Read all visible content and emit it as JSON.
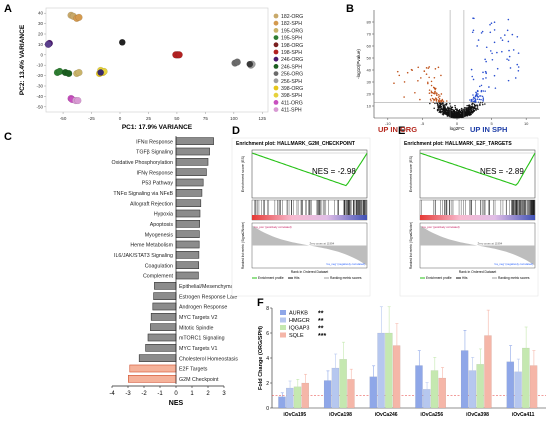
{
  "panels": {
    "a": {
      "label": "A"
    },
    "b": {
      "label": "B"
    },
    "c": {
      "label": "C"
    },
    "d": {
      "label": "D"
    },
    "e": {
      "label": "E"
    },
    "f": {
      "label": "F"
    }
  },
  "chart_data": [
    {
      "id": "A",
      "type": "scatter",
      "xlabel": "PC1: 17.9% VARIANCE",
      "ylabel": "PC2: 13.4% VARIANCE",
      "xticks": [
        -50,
        -25,
        0,
        25,
        50,
        75,
        100,
        125
      ],
      "yticks": [
        -50,
        -40,
        -30,
        -20,
        -10,
        0,
        10,
        20,
        30,
        40
      ],
      "xlim": [
        -65,
        130
      ],
      "ylim": [
        -55,
        45
      ],
      "legend_position": "right",
      "series": [
        {
          "name": "182-ORG",
          "color": "#c8a96a",
          "points": [
            [
              -43,
              38
            ],
            [
              -41,
              37
            ]
          ]
        },
        {
          "name": "182-SPH",
          "color": "#d49a4e",
          "points": [
            [
              -38,
              35
            ],
            [
              -36,
              36
            ]
          ]
        },
        {
          "name": "195-ORG",
          "color": "#c9b36a",
          "points": [
            [
              -38,
              -18
            ],
            [
              -36,
              -17
            ]
          ]
        },
        {
          "name": "195-SPH",
          "color": "#2e7d32",
          "points": [
            [
              -55,
              -17
            ],
            [
              -53,
              -16
            ]
          ]
        },
        {
          "name": "198-ORG",
          "color": "#7a1f1f",
          "points": [
            [
              50,
              0
            ],
            [
              51,
              0
            ]
          ]
        },
        {
          "name": "198-SPH",
          "color": "#b22222",
          "points": [
            [
              49,
              0
            ],
            [
              52,
              0
            ]
          ]
        },
        {
          "name": "246-ORG",
          "color": "#4a1a6e",
          "points": [
            [
              -63,
              10
            ],
            [
              -62,
              11
            ]
          ]
        },
        {
          "name": "246-SPH",
          "color": "#1b5e20",
          "points": [
            [
              -48,
              -17
            ],
            [
              -45,
              -18
            ]
          ]
        },
        {
          "name": "256-ORG",
          "color": "#6b6b6b",
          "points": [
            [
              101,
              -8
            ],
            [
              103,
              -7
            ]
          ]
        },
        {
          "name": "256-SPH",
          "color": "#9e9e9e",
          "points": [
            [
              115,
              -10
            ],
            [
              116,
              -9
            ]
          ]
        },
        {
          "name": "398-ORG",
          "color": "#e6c619",
          "points": [
            [
              -18,
              -18
            ],
            [
              -15,
              -17
            ]
          ]
        },
        {
          "name": "398-SPH",
          "color": "#e6d23c",
          "points": [
            [
              -17,
              -15
            ],
            [
              -14,
              -16
            ]
          ]
        },
        {
          "name": "411-ORG",
          "color": "#c84fbf",
          "points": [
            [
              -43,
              -42
            ],
            [
              -42,
              -43
            ]
          ]
        },
        {
          "name": "411-SPH",
          "color": "#d89ad3",
          "points": [
            [
              -39,
              -44
            ],
            [
              -37,
              -44
            ]
          ]
        }
      ],
      "extra_points": [
        {
          "color": "#222222",
          "x": 2,
          "y": 12
        },
        {
          "color": "#5a3f8c",
          "x": -63,
          "y": 10
        },
        {
          "color": "#3a2a6a",
          "x": -17,
          "y": -17
        },
        {
          "color": "#3a3a3a",
          "x": 114,
          "y": -9
        }
      ]
    },
    {
      "id": "B",
      "type": "scatter",
      "title": "",
      "xlabel": "log2FC",
      "ylabel": "-log10(Pvalue)",
      "xticks": [
        -10,
        -5,
        0,
        5,
        10
      ],
      "yticks": [
        10,
        20,
        30,
        40,
        50,
        60,
        70,
        80
      ],
      "xlim": [
        -12,
        12
      ],
      "ylim": [
        0,
        90
      ],
      "annotations": [
        {
          "text": "UP IN ORG",
          "color": "#b5271d",
          "position": "bottom-left"
        },
        {
          "text": "UP IN SPH",
          "color": "#1f3fa8",
          "position": "bottom-right"
        }
      ],
      "thresholds": {
        "x": [
          -1,
          1
        ],
        "y": 13
      }
    },
    {
      "id": "C",
      "type": "bar",
      "orientation": "horizontal",
      "xlabel": "NES",
      "xlim": [
        -4,
        3
      ],
      "xticks": [
        -4,
        -3,
        -2,
        -1,
        0,
        1,
        2,
        3
      ],
      "categories": [
        "IFNα Response",
        "TGFβ Signaling",
        "Oxidative Phosphorylation",
        "IFNγ Response",
        "P53 Pathway",
        "TNFα Signaling via NFκB",
        "Allograft Rejection",
        "Hypoxia",
        "Apoptosis",
        "Myogenesis",
        "Heme Metabolism",
        "IL6/JAK/STAT3 Signaling",
        "Coagulation",
        "Complement",
        "Epithelial/Mesenchymal Transition",
        "Estrogen Response Late",
        "Androgen Response",
        "MYC Targets V2",
        "Mitotic Spindle",
        "mTORC1 Signaling",
        "MYC Targets V1",
        "Cholesterol Homeostasis",
        "E2F Targets",
        "G2M Checkpoint"
      ],
      "values": [
        2.35,
        2.1,
        2.0,
        1.9,
        1.7,
        1.62,
        1.55,
        1.5,
        1.48,
        1.46,
        1.45,
        1.43,
        1.42,
        1.4,
        -1.35,
        -1.4,
        -1.45,
        -1.55,
        -1.6,
        -1.75,
        -1.9,
        -2.3,
        -2.89,
        -2.98
      ],
      "highlight": [
        "E2F Targets",
        "G2M Checkpoint"
      ],
      "colors": {
        "normal": "#8c8c8c",
        "highlight": "#f5b29a"
      }
    },
    {
      "id": "D",
      "type": "line",
      "title": "Enrichment plot: HALLMARK_G2M_CHECKPOINT",
      "ylabel": "Enrichment score (ES)",
      "ylabel2": "Ranked list metric (Signal2Noise)",
      "xlabel": "Rank in Ordered Dataset",
      "nes": "NES = -2.98",
      "legend": [
        "Enrichment profile",
        "Hits",
        "Ranking metric scores"
      ],
      "zero_cross": "Zero cross at 11994",
      "pos_label": "'na_pos' (positively correlated)",
      "neg_label": "'na_neg' (negatively correlated)"
    },
    {
      "id": "E",
      "type": "line",
      "title": "Enrichment plot: HALLMARK_E2F_TARGETS",
      "ylabel": "Enrichment score (ES)",
      "ylabel2": "Ranked list metric (Signal2Noise)",
      "xlabel": "Rank in Ordered Dataset",
      "nes": "NES = -2.89",
      "legend": [
        "Enrichment profile",
        "Hits",
        "Ranking metric scores"
      ],
      "zero_cross": "Zero cross at 11994",
      "pos_label": "'na_pos' (positively correlated)",
      "neg_label": "'na_neg' (negatively correlated)"
    },
    {
      "id": "F",
      "type": "bar",
      "ylabel": "Fold Change (ORG/SPH)",
      "ylim": [
        0,
        8
      ],
      "yticks": [
        0,
        2,
        4,
        6,
        8
      ],
      "categories": [
        "iOvCa195",
        "iOvCa198",
        "iOvCa246",
        "iOvCa256",
        "iOvCa398",
        "iOvCa411"
      ],
      "series": [
        {
          "name": "AURKB",
          "color": "#8fa7e8",
          "values": [
            0.9,
            2.2,
            2.5,
            3.4,
            4.6,
            3.7
          ]
        },
        {
          "name": "HMGCR",
          "color": "#b6c7ef",
          "values": [
            1.6,
            3.2,
            6.0,
            1.5,
            3.0,
            2.9
          ]
        },
        {
          "name": "IQGAP3",
          "color": "#c5e8b0",
          "values": [
            1.7,
            3.9,
            6.0,
            3.0,
            3.5,
            4.8
          ]
        },
        {
          "name": "SQLE",
          "color": "#f5b6a8",
          "values": [
            2.0,
            2.3,
            5.0,
            2.4,
            5.8,
            3.4
          ]
        }
      ],
      "significance": [
        "**",
        "**",
        "**",
        "***"
      ]
    }
  ]
}
